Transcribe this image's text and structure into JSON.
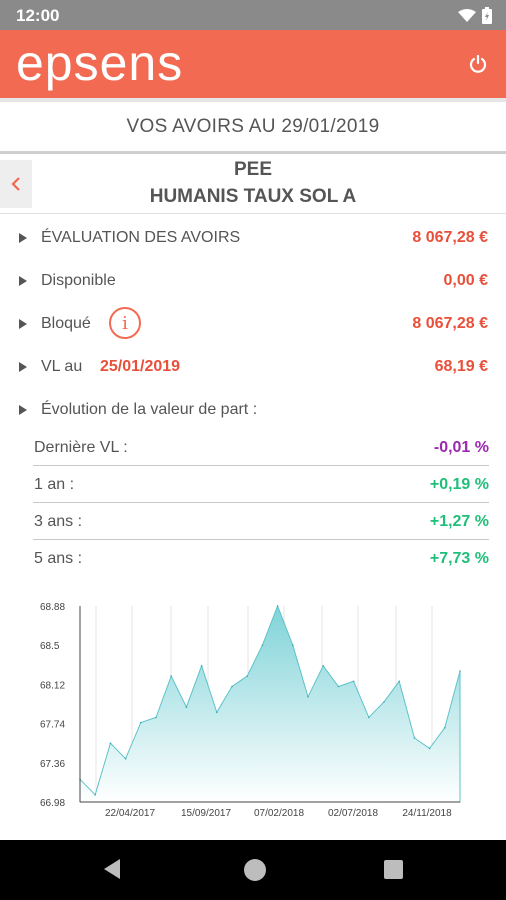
{
  "status": {
    "time": "12:00"
  },
  "app": {
    "logo": "epsens",
    "power_icon": "power-icon",
    "accent_color": "#f36a53"
  },
  "subtitle": "VOS AVOIRS AU 29/01/2019",
  "fund": {
    "type": "PEE",
    "name": "HUMANIS TAUX SOL A"
  },
  "rows": {
    "evaluation": {
      "label": "ÉVALUATION DES AVOIRS",
      "value": "8 067,28 €"
    },
    "disponible": {
      "label": "Disponible",
      "value": "0,00 €"
    },
    "bloque": {
      "label": "Bloqué",
      "value": "8 067,28 €",
      "info_icon": "i"
    },
    "vl": {
      "label": "VL au",
      "date": "25/01/2019",
      "value": "68,19 €"
    },
    "evolution": {
      "label": "Évolution de la valeur de part :"
    }
  },
  "performance": [
    {
      "label": "Dernière VL :",
      "value": "-0,01 %",
      "color": "#9c27b0"
    },
    {
      "label": "1 an :",
      "value": "+0,19 %",
      "color": "#1fbf7a"
    },
    {
      "label": "3 ans :",
      "value": "+1,27 %",
      "color": "#1fbf7a"
    },
    {
      "label": "5 ans :",
      "value": "+7,73 %",
      "color": "#1fbf7a"
    }
  ],
  "chart_data": {
    "type": "area",
    "title": "",
    "xlabel": "",
    "ylabel": "",
    "y_ticks": [
      "68.88",
      "68.5",
      "68.12",
      "67.74",
      "67.36",
      "66.98"
    ],
    "ylim": [
      66.98,
      68.88
    ],
    "x_ticks": [
      "22/04/2017",
      "15/09/2017",
      "07/02/2018",
      "02/07/2018",
      "24/11/2018"
    ],
    "grid": "vertical",
    "fill_color": "#7fd3d8",
    "series": [
      {
        "x": [
          "12/2016",
          "01/2017",
          "02/2017",
          "03/2017",
          "04/2017",
          "05/2017",
          "06/2017",
          "07/2017",
          "08/2017",
          "09/2017",
          "10/2017",
          "11/2017",
          "12/2017",
          "01/2018",
          "02/2018",
          "03/2018",
          "04/2018",
          "05/2018",
          "06/2018",
          "07/2018",
          "08/2018",
          "09/2018",
          "10/2018",
          "11/2018",
          "12/2018",
          "01/2019"
        ],
        "values": [
          67.2,
          67.05,
          67.55,
          67.4,
          67.75,
          67.8,
          68.2,
          67.9,
          68.3,
          67.85,
          68.1,
          68.2,
          68.5,
          68.88,
          68.5,
          68.0,
          68.3,
          68.1,
          68.15,
          67.8,
          67.95,
          68.15,
          67.6,
          67.5,
          67.7,
          68.25
        ]
      }
    ]
  }
}
